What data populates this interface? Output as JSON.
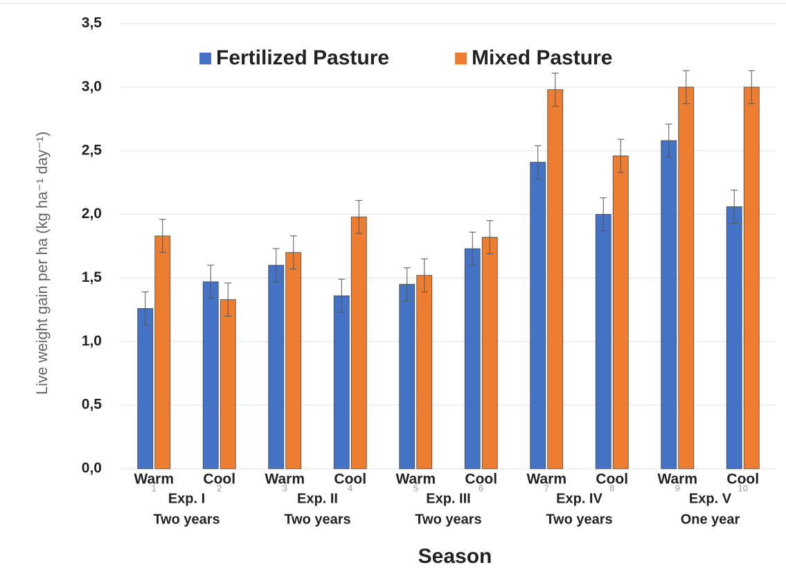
{
  "chart_data": {
    "type": "bar",
    "y_label": "Live weight gain per ha (kg ha⁻¹ day⁻¹)",
    "x_label": "Season",
    "categories": [
      "1",
      "2",
      "3",
      "4",
      "5",
      "6",
      "7",
      "8",
      "9",
      "10"
    ],
    "season_labels": [
      "Warm",
      "Cool",
      "Warm",
      "Cool",
      "Warm",
      "Cool",
      "Warm",
      "Cool",
      "Warm",
      "Cool"
    ],
    "groups": [
      {
        "name": "Exp. I",
        "period": "Two years"
      },
      {
        "name": "Exp. II",
        "period": "Two years"
      },
      {
        "name": "Exp. III",
        "period": "Two years"
      },
      {
        "name": "Exp. IV",
        "period": "Two years"
      },
      {
        "name": "Exp. V",
        "period": "One year"
      }
    ],
    "series": [
      {
        "name": "Fertilized Pasture",
        "color": "#4472c4",
        "values": [
          1.26,
          1.47,
          1.6,
          1.36,
          1.45,
          1.73,
          2.41,
          2.0,
          2.58,
          2.06
        ],
        "errors": [
          0.13,
          0.13,
          0.13,
          0.13,
          0.13,
          0.13,
          0.13,
          0.13,
          0.13,
          0.13
        ]
      },
      {
        "name": "Mixed Pasture",
        "color": "#ed7d31",
        "values": [
          1.83,
          1.33,
          1.7,
          1.98,
          1.52,
          1.82,
          2.98,
          2.46,
          3.0,
          3.0
        ],
        "errors": [
          0.13,
          0.13,
          0.13,
          0.13,
          0.13,
          0.13,
          0.13,
          0.13,
          0.13,
          0.13
        ]
      }
    ],
    "ylim": [
      0,
      3.5
    ],
    "yticks": [
      {
        "value": 0,
        "label": "0,0"
      },
      {
        "value": 0.5,
        "label": "0,5"
      },
      {
        "value": 1,
        "label": "1,0"
      },
      {
        "value": 1.5,
        "label": "1,5"
      },
      {
        "value": 2,
        "label": "2,0"
      },
      {
        "value": 2.5,
        "label": "2,5"
      },
      {
        "value": 3,
        "label": "3,0"
      },
      {
        "value": 3.5,
        "label": "3,5"
      }
    ],
    "grid": true,
    "legend": "top"
  }
}
